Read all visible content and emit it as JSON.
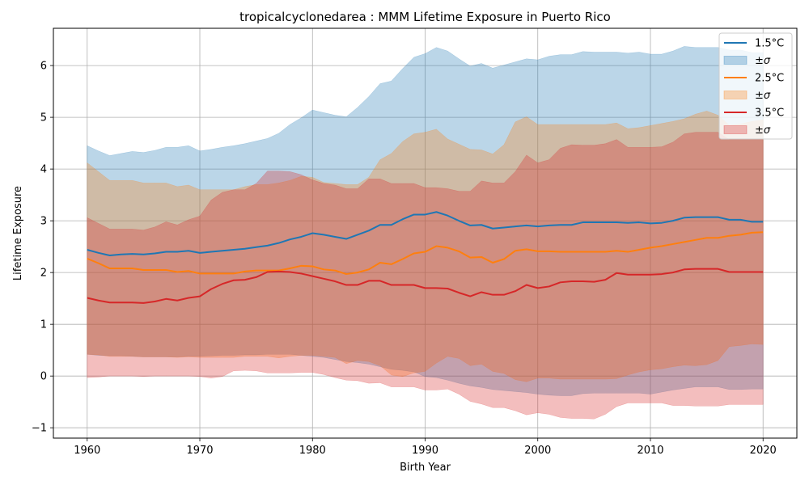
{
  "chart_data": {
    "type": "line",
    "title": "tropicalcyclonedarea : MMM Lifetime Exposure in Puerto Rico",
    "xlabel": "Birth Year",
    "ylabel": "Lifetime Exposure",
    "xlim": [
      1957,
      2023
    ],
    "ylim": [
      -1.2,
      6.72
    ],
    "xticks": [
      1960,
      1970,
      1980,
      1990,
      2000,
      2010,
      2020
    ],
    "yticks": [
      -1,
      0,
      1,
      2,
      3,
      4,
      5,
      6
    ],
    "grid": true,
    "legend_position": "top-right",
    "x": [
      1960,
      1961,
      1962,
      1963,
      1964,
      1965,
      1966,
      1967,
      1968,
      1969,
      1970,
      1971,
      1972,
      1973,
      1974,
      1975,
      1976,
      1977,
      1978,
      1979,
      1980,
      1981,
      1982,
      1983,
      1984,
      1985,
      1986,
      1987,
      1988,
      1989,
      1990,
      1991,
      1992,
      1993,
      1994,
      1995,
      1996,
      1997,
      1998,
      1999,
      2000,
      2001,
      2002,
      2003,
      2004,
      2005,
      2006,
      2007,
      2008,
      2009,
      2010,
      2011,
      2012,
      2013,
      2014,
      2015,
      2016,
      2017,
      2018,
      2019,
      2020
    ],
    "series": [
      {
        "name": "1.5°C",
        "band_label": "±σ",
        "color": "#1f77b4",
        "fill_rgba": "rgba(31,119,180,0.30)",
        "mean": [
          2.44,
          2.38,
          2.33,
          2.35,
          2.36,
          2.35,
          2.37,
          2.4,
          2.4,
          2.42,
          2.38,
          2.4,
          2.42,
          2.44,
          2.46,
          2.49,
          2.52,
          2.57,
          2.64,
          2.69,
          2.76,
          2.73,
          2.69,
          2.65,
          2.73,
          2.81,
          2.92,
          2.92,
          3.03,
          3.12,
          3.12,
          3.17,
          3.1,
          3.0,
          2.91,
          2.92,
          2.85,
          2.87,
          2.89,
          2.91,
          2.89,
          2.91,
          2.92,
          2.92,
          2.97,
          2.97,
          2.97,
          2.97,
          2.96,
          2.97,
          2.95,
          2.96,
          3.0,
          3.06,
          3.07,
          3.07,
          3.07,
          3.02,
          3.02,
          2.98,
          2.98
        ],
        "upper": [
          4.45,
          4.35,
          4.26,
          4.3,
          4.34,
          4.32,
          4.36,
          4.42,
          4.42,
          4.45,
          4.35,
          4.38,
          4.42,
          4.45,
          4.49,
          4.54,
          4.59,
          4.69,
          4.86,
          4.99,
          5.14,
          5.09,
          5.04,
          5.01,
          5.19,
          5.4,
          5.65,
          5.7,
          5.94,
          6.16,
          6.23,
          6.35,
          6.28,
          6.13,
          5.99,
          6.04,
          5.95,
          6.01,
          6.07,
          6.13,
          6.11,
          6.18,
          6.21,
          6.21,
          6.27,
          6.26,
          6.26,
          6.26,
          6.24,
          6.26,
          6.22,
          6.22,
          6.28,
          6.37,
          6.35,
          6.35,
          6.35,
          6.3,
          6.3,
          6.25,
          6.25
        ],
        "lower": [
          0.42,
          0.4,
          0.39,
          0.39,
          0.38,
          0.37,
          0.37,
          0.37,
          0.37,
          0.38,
          0.38,
          0.39,
          0.4,
          0.4,
          0.41,
          0.41,
          0.42,
          0.42,
          0.42,
          0.4,
          0.38,
          0.36,
          0.32,
          0.28,
          0.26,
          0.23,
          0.18,
          0.13,
          0.11,
          0.08,
          -0.01,
          -0.03,
          -0.08,
          -0.14,
          -0.19,
          -0.22,
          -0.26,
          -0.28,
          -0.3,
          -0.32,
          -0.35,
          -0.37,
          -0.38,
          -0.38,
          -0.34,
          -0.33,
          -0.33,
          -0.33,
          -0.33,
          -0.33,
          -0.35,
          -0.31,
          -0.27,
          -0.24,
          -0.21,
          -0.21,
          -0.21,
          -0.26,
          -0.26,
          -0.25,
          -0.25
        ]
      },
      {
        "name": "2.5°C",
        "band_label": "±σ",
        "color": "#ff7f0e",
        "fill_rgba": "rgba(255,127,14,0.30)",
        "mean": [
          2.27,
          2.18,
          2.08,
          2.08,
          2.08,
          2.05,
          2.05,
          2.05,
          2.01,
          2.03,
          1.98,
          1.98,
          1.98,
          1.98,
          2.02,
          2.04,
          2.04,
          2.04,
          2.08,
          2.13,
          2.12,
          2.06,
          2.04,
          1.97,
          2.0,
          2.06,
          2.19,
          2.16,
          2.26,
          2.37,
          2.4,
          2.51,
          2.48,
          2.41,
          2.29,
          2.3,
          2.19,
          2.26,
          2.42,
          2.45,
          2.41,
          2.41,
          2.4,
          2.4,
          2.4,
          2.4,
          2.4,
          2.42,
          2.4,
          2.44,
          2.48,
          2.51,
          2.55,
          2.59,
          2.63,
          2.67,
          2.67,
          2.71,
          2.73,
          2.77,
          2.78
        ],
        "upper": [
          4.12,
          3.95,
          3.78,
          3.78,
          3.78,
          3.73,
          3.73,
          3.73,
          3.66,
          3.69,
          3.6,
          3.6,
          3.6,
          3.6,
          3.66,
          3.7,
          3.7,
          3.73,
          3.78,
          3.86,
          3.84,
          3.74,
          3.72,
          3.7,
          3.7,
          3.84,
          4.18,
          4.3,
          4.53,
          4.68,
          4.71,
          4.77,
          4.58,
          4.48,
          4.38,
          4.37,
          4.29,
          4.47,
          4.91,
          5.01,
          4.86,
          4.86,
          4.86,
          4.86,
          4.86,
          4.86,
          4.86,
          4.89,
          4.78,
          4.8,
          4.84,
          4.88,
          4.92,
          4.97,
          5.06,
          5.12,
          5.04,
          4.85,
          4.87,
          4.92,
          4.95
        ],
        "lower": [
          0.42,
          0.41,
          0.38,
          0.38,
          0.38,
          0.37,
          0.37,
          0.37,
          0.36,
          0.37,
          0.36,
          0.36,
          0.36,
          0.36,
          0.38,
          0.38,
          0.38,
          0.35,
          0.38,
          0.4,
          0.4,
          0.38,
          0.36,
          0.24,
          0.3,
          0.28,
          0.2,
          0.02,
          -0.01,
          0.06,
          0.09,
          0.25,
          0.38,
          0.34,
          0.2,
          0.23,
          0.09,
          0.05,
          -0.07,
          -0.11,
          -0.04,
          -0.04,
          -0.06,
          -0.06,
          -0.06,
          -0.06,
          -0.06,
          -0.05,
          0.02,
          0.08,
          0.12,
          0.14,
          0.18,
          0.21,
          0.2,
          0.22,
          0.3,
          0.57,
          0.59,
          0.62,
          0.61
        ]
      },
      {
        "name": "3.5°C",
        "band_label": "±σ",
        "color": "#d62728",
        "fill_rgba": "rgba(214,39,40,0.30)",
        "mean": [
          1.51,
          1.46,
          1.42,
          1.42,
          1.42,
          1.41,
          1.44,
          1.49,
          1.46,
          1.51,
          1.54,
          1.68,
          1.78,
          1.85,
          1.86,
          1.91,
          2.01,
          2.02,
          2.01,
          1.98,
          1.93,
          1.88,
          1.83,
          1.76,
          1.76,
          1.84,
          1.84,
          1.76,
          1.76,
          1.76,
          1.7,
          1.7,
          1.69,
          1.61,
          1.54,
          1.62,
          1.57,
          1.57,
          1.64,
          1.76,
          1.7,
          1.73,
          1.81,
          1.83,
          1.83,
          1.82,
          1.86,
          1.99,
          1.96,
          1.96,
          1.96,
          1.97,
          2.0,
          2.06,
          2.07,
          2.07,
          2.07,
          2.01,
          2.01,
          2.01,
          2.01
        ],
        "upper": [
          3.06,
          2.95,
          2.84,
          2.84,
          2.84,
          2.82,
          2.88,
          2.98,
          2.92,
          3.02,
          3.09,
          3.4,
          3.55,
          3.6,
          3.6,
          3.72,
          3.96,
          3.96,
          3.95,
          3.89,
          3.79,
          3.72,
          3.69,
          3.62,
          3.62,
          3.81,
          3.81,
          3.72,
          3.72,
          3.72,
          3.64,
          3.64,
          3.62,
          3.57,
          3.57,
          3.77,
          3.73,
          3.73,
          3.95,
          4.27,
          4.12,
          4.18,
          4.4,
          4.47,
          4.46,
          4.46,
          4.49,
          4.57,
          4.42,
          4.42,
          4.42,
          4.43,
          4.52,
          4.68,
          4.71,
          4.71,
          4.71,
          4.57,
          4.57,
          4.57,
          4.57
        ],
        "lower": [
          -0.03,
          -0.02,
          0.0,
          0.0,
          0.0,
          -0.01,
          0.0,
          0.0,
          0.0,
          0.0,
          -0.01,
          -0.04,
          -0.01,
          0.1,
          0.11,
          0.1,
          0.06,
          0.06,
          0.06,
          0.07,
          0.07,
          0.03,
          -0.03,
          -0.08,
          -0.09,
          -0.14,
          -0.13,
          -0.21,
          -0.21,
          -0.21,
          -0.27,
          -0.27,
          -0.25,
          -0.35,
          -0.49,
          -0.54,
          -0.61,
          -0.61,
          -0.67,
          -0.75,
          -0.71,
          -0.74,
          -0.8,
          -0.82,
          -0.82,
          -0.83,
          -0.74,
          -0.59,
          -0.52,
          -0.52,
          -0.52,
          -0.52,
          -0.57,
          -0.57,
          -0.58,
          -0.58,
          -0.58,
          -0.55,
          -0.55,
          -0.55,
          -0.55
        ]
      }
    ]
  }
}
